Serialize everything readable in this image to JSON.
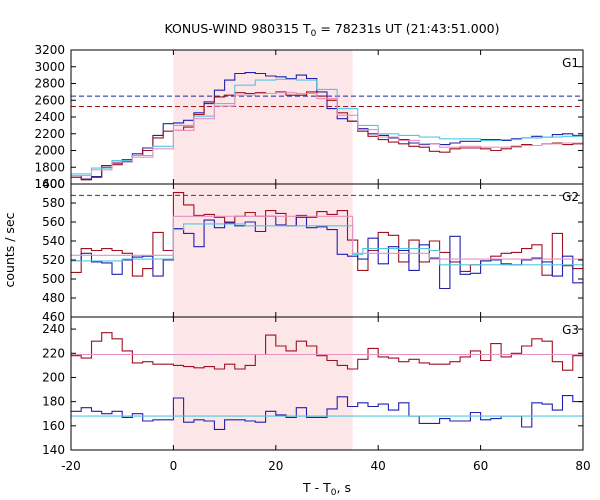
{
  "chart_data": {
    "type": "line",
    "title_main": "KONUS-WIND 980315 T",
    "title_sub": "0",
    "title_rest": " = 78231s UT (21:43:51.000)",
    "xlabel_main": "T - T",
    "xlabel_sub": "0",
    "xlabel_rest": ", s",
    "ylabel": "counts / sec",
    "xlim": [
      -20,
      80
    ],
    "x_ticks": [
      -20,
      0,
      20,
      40,
      60,
      80
    ],
    "highlight_interval": [
      0,
      35
    ],
    "panels": [
      {
        "name": "G1",
        "ylim": [
          1600,
          3200
        ],
        "y_ticks": [
          1600,
          1800,
          2000,
          2200,
          2400,
          2600,
          2800,
          3000,
          3200
        ],
        "bottom_tick_label": "1400",
        "dashed_levels": [
          {
            "value": 2650,
            "color": "#2020a0"
          },
          {
            "value": 2525,
            "color": "#a01020"
          }
        ],
        "series": [
          {
            "color": "#2020b0",
            "x": [
              -20,
              -18,
              -16,
              -14,
              -12,
              -10,
              -8,
              -6,
              -4,
              -2,
              0,
              2,
              4,
              6,
              8,
              10,
              12,
              14,
              16,
              18,
              20,
              22,
              24,
              26,
              28,
              30,
              32,
              34,
              36,
              38,
              40,
              42,
              44,
              46,
              48,
              50,
              52,
              54,
              56,
              58,
              60,
              62,
              64,
              66,
              68,
              70,
              72,
              74,
              76,
              78
            ],
            "values": [
              1700,
              1660,
              1690,
              1820,
              1850,
              1890,
              1960,
              2030,
              2180,
              2320,
              2330,
              2360,
              2450,
              2580,
              2720,
              2840,
              2920,
              2930,
              2920,
              2890,
              2880,
              2860,
              2900,
              2860,
              2700,
              2500,
              2380,
              2350,
              2260,
              2200,
              2180,
              2150,
              2130,
              2090,
              2070,
              2080,
              2070,
              2090,
              2110,
              2110,
              2130,
              2130,
              2120,
              2140,
              2150,
              2170,
              2160,
              2190,
              2200,
              2180
            ]
          },
          {
            "color": "#a01020",
            "x": [
              -20,
              -18,
              -16,
              -14,
              -12,
              -10,
              -8,
              -6,
              -4,
              -2,
              0,
              2,
              4,
              6,
              8,
              10,
              12,
              14,
              16,
              18,
              20,
              22,
              24,
              26,
              28,
              30,
              32,
              34,
              36,
              38,
              40,
              42,
              44,
              46,
              48,
              50,
              52,
              54,
              56,
              58,
              60,
              62,
              64,
              66,
              68,
              70,
              72,
              74,
              76,
              78
            ],
            "values": [
              1680,
              1650,
              1680,
              1800,
              1830,
              1870,
              1940,
              2000,
              2150,
              2230,
              2240,
              2280,
              2430,
              2560,
              2640,
              2660,
              2690,
              2680,
              2690,
              2680,
              2700,
              2660,
              2660,
              2700,
              2650,
              2600,
              2450,
              2350,
              2230,
              2170,
              2130,
              2100,
              2080,
              2050,
              2040,
              1990,
              1980,
              2020,
              2030,
              2030,
              2020,
              2000,
              2020,
              2050,
              2070,
              2060,
              2080,
              2090,
              2070,
              2080
            ]
          },
          {
            "color": "#50c8e0",
            "x": [
              -20,
              -16,
              -12,
              -8,
              -4,
              0,
              4,
              8,
              12,
              16,
              20,
              24,
              28,
              32,
              36,
              40,
              44,
              48,
              52,
              56,
              60,
              64,
              68,
              72,
              76
            ],
            "values": [
              1720,
              1790,
              1880,
              1940,
              2050,
              2300,
              2410,
              2560,
              2780,
              2840,
              2850,
              2840,
              2730,
              2500,
              2300,
              2200,
              2180,
              2160,
              2140,
              2140,
              2120,
              2130,
              2150,
              2160,
              2170
            ]
          },
          {
            "color": "#e890c0",
            "x": [
              -20,
              -16,
              -12,
              -8,
              -4,
              0,
              4,
              8,
              12,
              16,
              20,
              24,
              28,
              32,
              36,
              40,
              44,
              48,
              52,
              56,
              60,
              64,
              68,
              72,
              76
            ],
            "values": [
              1700,
              1770,
              1860,
              1920,
              2020,
              2240,
              2380,
              2530,
              2660,
              2680,
              2690,
              2680,
              2620,
              2420,
              2250,
              2160,
              2120,
              2080,
              2040,
              2050,
              2040,
              2040,
              2060,
              2080,
              2090
            ]
          }
        ]
      },
      {
        "name": "G2",
        "ylim": [
          460,
          600
        ],
        "y_ticks": [
          460,
          480,
          500,
          520,
          540,
          560,
          580
        ],
        "dashed_levels": [
          {
            "value": 588,
            "color": "#a01020"
          }
        ],
        "series": [
          {
            "color": "#a01020",
            "x": [
              -20,
              -18,
              -16,
              -14,
              -12,
              -10,
              -8,
              -6,
              -4,
              -2,
              0,
              2,
              4,
              6,
              8,
              10,
              12,
              14,
              16,
              18,
              20,
              22,
              24,
              26,
              28,
              30,
              32,
              34,
              36,
              38,
              40,
              42,
              44,
              46,
              48,
              50,
              52,
              54,
              56,
              58,
              60,
              62,
              64,
              66,
              68,
              70,
              72,
              74,
              76,
              78
            ],
            "values": [
              507,
              532,
              530,
              532,
              530,
              527,
              503,
              511,
              549,
              530,
              591,
              578,
              567,
              568,
              565,
              560,
              566,
              570,
              566,
              572,
              569,
              556,
              567,
              565,
              571,
              568,
              572,
              541,
              509,
              530,
              549,
              546,
              518,
              541,
              518,
              540,
              528,
              518,
              508,
              515,
              519,
              524,
              527,
              528,
              532,
              536,
              504,
              548,
              514,
              511
            ]
          },
          {
            "color": "#2020b0",
            "x": [
              -20,
              -18,
              -16,
              -14,
              -12,
              -10,
              -8,
              -6,
              -4,
              -2,
              0,
              2,
              4,
              6,
              8,
              10,
              12,
              14,
              16,
              18,
              20,
              22,
              24,
              26,
              28,
              30,
              32,
              34,
              36,
              38,
              40,
              42,
              44,
              46,
              48,
              50,
              52,
              54,
              56,
              58,
              60,
              62,
              64,
              66,
              68,
              70,
              72,
              74,
              76,
              78
            ],
            "values": [
              519,
              527,
              518,
              517,
              505,
              520,
              523,
              524,
              503,
              520,
              553,
              548,
              534,
              562,
              554,
              559,
              556,
              560,
              550,
              566,
              557,
              556,
              565,
              554,
              555,
              552,
              526,
              524,
              521,
              543,
              516,
              534,
              530,
              509,
              536,
              522,
              490,
              545,
              505,
              506,
              519,
              520,
              516,
              515,
              520,
              522,
              518,
              503,
              524,
              496
            ]
          },
          {
            "color": "#50c8e0",
            "x": [
              -20,
              -10,
              0,
              2,
              14,
              30,
              35,
              37,
              50,
              52,
              80
            ],
            "values": [
              519,
              521,
              552,
              558,
              556,
              556,
              526,
              532,
              530,
              515,
              515
            ]
          },
          {
            "color": "#e890c0",
            "x": [
              -20,
              0,
              35,
              50,
              80
            ],
            "values": [
              525,
              566,
              527,
              521,
              522
            ]
          }
        ]
      },
      {
        "name": "G3",
        "ylim": [
          140,
          250
        ],
        "y_ticks": [
          140,
          160,
          180,
          200,
          220,
          240
        ],
        "series": [
          {
            "color": "#a01020",
            "x": [
              -20,
              -18,
              -16,
              -14,
              -12,
              -10,
              -8,
              -6,
              -4,
              -2,
              0,
              2,
              4,
              6,
              8,
              10,
              12,
              14,
              16,
              18,
              20,
              22,
              24,
              26,
              28,
              30,
              32,
              34,
              36,
              38,
              40,
              42,
              44,
              46,
              48,
              50,
              52,
              54,
              56,
              58,
              60,
              62,
              64,
              66,
              68,
              70,
              72,
              74,
              76,
              78
            ],
            "values": [
              218,
              216,
              230,
              237,
              232,
              222,
              212,
              213,
              211,
              211,
              210,
              209,
              208,
              209,
              207,
              211,
              207,
              210,
              219,
              235,
              226,
              222,
              230,
              226,
              218,
              214,
              210,
              207,
              215,
              224,
              217,
              216,
              213,
              215,
              212,
              211,
              211,
              213,
              217,
              222,
              214,
              228,
              217,
              220,
              226,
              232,
              230,
              213,
              206,
              218
            ]
          },
          {
            "color": "#2020b0",
            "x": [
              -20,
              -18,
              -16,
              -14,
              -12,
              -10,
              -8,
              -6,
              -4,
              -2,
              0,
              2,
              4,
              6,
              8,
              10,
              12,
              14,
              16,
              18,
              20,
              22,
              24,
              26,
              28,
              30,
              32,
              34,
              36,
              38,
              40,
              42,
              44,
              46,
              48,
              50,
              52,
              54,
              56,
              58,
              60,
              62,
              64,
              66,
              68,
              70,
              72,
              74,
              76,
              78
            ],
            "values": [
              172,
              175,
              172,
              170,
              172,
              167,
              170,
              164,
              165,
              165,
              183,
              163,
              165,
              164,
              157,
              165,
              165,
              164,
              163,
              172,
              169,
              167,
              175,
              167,
              167,
              174,
              184,
              176,
              179,
              176,
              178,
              173,
              179,
              168,
              162,
              162,
              166,
              164,
              164,
              171,
              165,
              166,
              168,
              168,
              159,
              179,
              178,
              173,
              185,
              180
            ]
          },
          {
            "color": "#50c8e0",
            "x": [
              -20,
              80
            ],
            "values": [
              168,
              168
            ]
          },
          {
            "color": "#e890c0",
            "x": [
              -20,
              80
            ],
            "values": [
              219,
              219
            ]
          }
        ]
      }
    ]
  }
}
